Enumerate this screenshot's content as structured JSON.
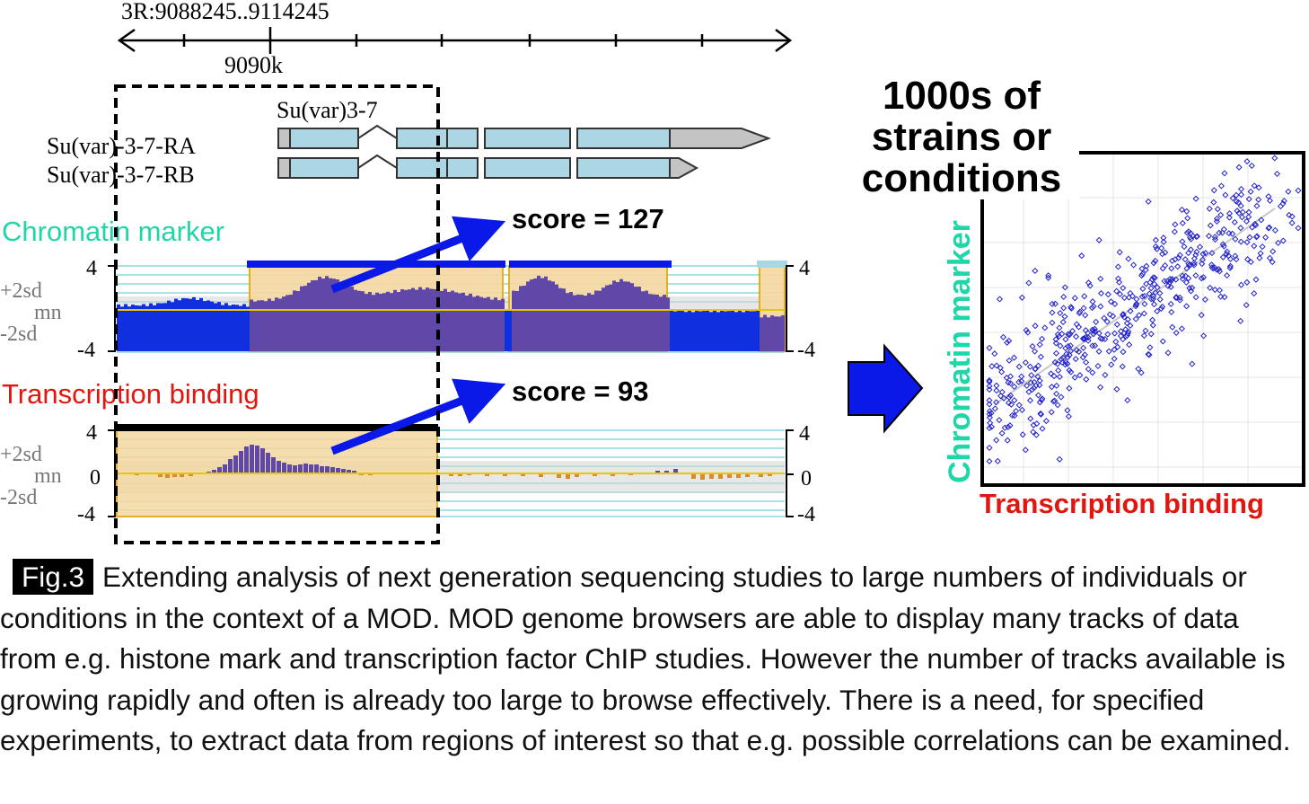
{
  "browser": {
    "region": "3R:9088245..9114245",
    "tick_label": "9090k",
    "gene_name": "Su(var)3-7",
    "transcripts": [
      "Su(var)-3-7-RA",
      "Su(var)-3-7-RB"
    ]
  },
  "tracks": [
    {
      "title": "Chromatin marker",
      "title_color": "#1fd6a8",
      "score_text": "score = 127",
      "axis_left": [
        "4",
        "+2sd",
        "mn",
        "-2sd",
        "-4"
      ],
      "axis_right": [
        "4",
        "-4"
      ]
    },
    {
      "title": "Transcription binding",
      "title_color": "#e0160f",
      "score_text": "score = 93",
      "axis_left": [
        "4",
        "+2sd",
        "mn",
        "0",
        "-2sd",
        "-4"
      ],
      "axis_right": [
        "4",
        "0",
        "-4"
      ]
    }
  ],
  "scatter": {
    "overlay_lines": [
      "1000s of",
      "strains or",
      "conditions"
    ],
    "ylabel": "Chromatin marker",
    "xlabel": "Transcription binding",
    "ylabel_color": "#1fd6a8",
    "xlabel_color": "#e0160f",
    "point_color": "#2222cc"
  },
  "caption": {
    "tag": "Fig.3",
    "text": "Extending analysis of next generation sequencing studies to large numbers of individuals or conditions in the context of a MOD. MOD genome browsers are able to display many tracks of data from e.g. histone mark and transcription factor ChIP studies. However the number of tracks available is growing rapidly and often is already too large to browse effectively. There is a need, for specified experiments, to extract data from regions of interest so that e.g. possible correlations can be examined."
  },
  "colors": {
    "exon_fill": "#acd6e4",
    "utr_fill": "#c4c4c4",
    "signal_blue": "#1030e0",
    "signal_purple": "#6048a8",
    "highlight_orange": "#f5d8a0",
    "negative_orange": "#d98a30",
    "arrow_blue": "#0a18e8"
  }
}
